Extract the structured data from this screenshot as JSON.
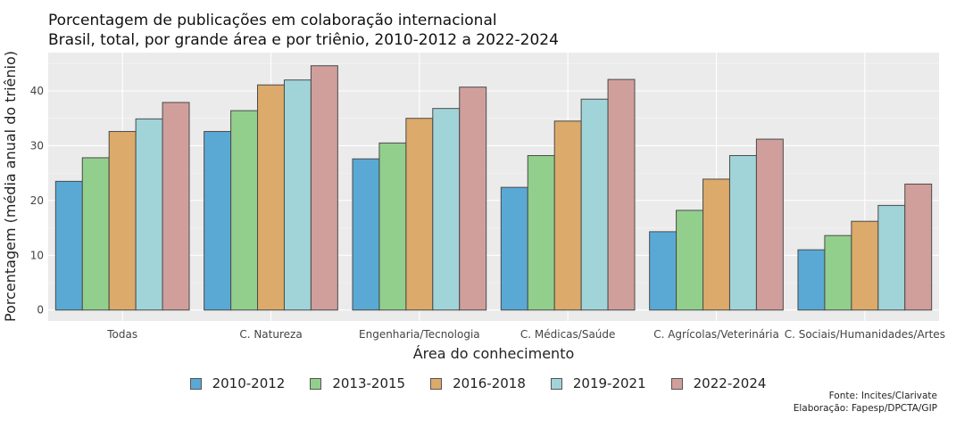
{
  "title": {
    "line1": "Porcentagem de publicações em colaboração internacional",
    "line2": "Brasil, total, por grande área e por triênio, 2010-2012 a 2022-2024"
  },
  "chart_data": {
    "type": "bar",
    "xlabel": "Área do conhecimento",
    "ylabel": "Porcentagem (média anual do triênio)",
    "ylim": [
      -2,
      47
    ],
    "yticks": [
      0,
      10,
      20,
      30,
      40
    ],
    "grid": true,
    "legend_position": "bottom-center",
    "categories": [
      "Todas",
      "C. Natureza",
      "Engenharia/Tecnologia",
      "C. Médicas/Saúde",
      "C. Agrícolas/Veterinária",
      "C. Sociais/Humanidades/Artes"
    ],
    "series": [
      {
        "name": "2010-2012",
        "color": "#5aa9d4",
        "values": [
          23.5,
          32.6,
          27.6,
          22.4,
          14.3,
          11.0
        ]
      },
      {
        "name": "2013-2015",
        "color": "#92cf8d",
        "values": [
          27.8,
          36.4,
          30.5,
          28.2,
          18.2,
          13.6
        ]
      },
      {
        "name": "2016-2018",
        "color": "#dcaa6a",
        "values": [
          32.6,
          41.1,
          35.0,
          34.5,
          23.9,
          16.2
        ]
      },
      {
        "name": "2019-2021",
        "color": "#a1d4d8",
        "values": [
          34.9,
          42.0,
          36.8,
          38.5,
          28.2,
          19.1
        ]
      },
      {
        "name": "2022-2024",
        "color": "#d09f9c",
        "values": [
          37.9,
          44.6,
          40.7,
          42.1,
          31.2,
          23.0
        ]
      }
    ]
  },
  "footer": {
    "source": "Fonte: Incites/Clarivate",
    "credit": "Elaboração: Fapesp/DPCTA/GIP"
  }
}
